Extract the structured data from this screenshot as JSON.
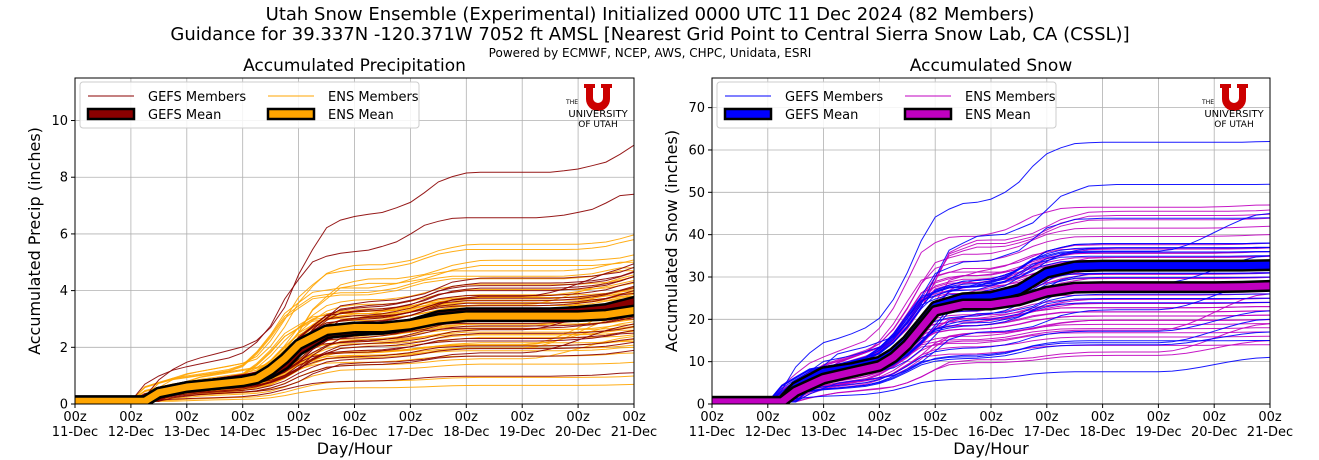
{
  "header": {
    "title_line1": "Utah Snow Ensemble (Experimental) Initialized 0000 UTC 11 Dec 2024 (82 Members)",
    "title_line2": "Guidance for 39.337N -120.371W 7052 ft AMSL [Nearest Grid Point to Central Sierra Snow Lab, CA (CSSL)]",
    "powered_by": "Powered by ECMWF, NCEP, AWS, CHPC, Unidata, ESRI"
  },
  "logo": {
    "the": "THE",
    "university": "UNIVERSITY",
    "of_utah": "OF UTAH",
    "mark": "U"
  },
  "chart_data": [
    {
      "type": "line",
      "title": "Accumulated Precipitation",
      "xlabel": "Day/Hour",
      "ylabel": "Accumulated Precip (inches)",
      "xlim": [
        0,
        240
      ],
      "ylim": [
        0,
        11.5
      ],
      "yticks": [
        0,
        2,
        4,
        6,
        8,
        10
      ],
      "xticks": [
        0,
        24,
        48,
        72,
        96,
        120,
        144,
        168,
        192,
        216,
        240
      ],
      "xticklabels": [
        [
          "00z",
          "11-Dec"
        ],
        [
          "00z",
          "12-Dec"
        ],
        [
          "00z",
          "13-Dec"
        ],
        [
          "00z",
          "14-Dec"
        ],
        [
          "00z",
          "15-Dec"
        ],
        [
          "00z",
          "16-Dec"
        ],
        [
          "00z",
          "17-Dec"
        ],
        [
          "00z",
          "18-Dec"
        ],
        [
          "00z",
          "19-Dec"
        ],
        [
          "00z",
          "20-Dec"
        ],
        [
          "00z",
          "21-Dec"
        ]
      ],
      "grid": true,
      "legend_position": "top-left",
      "legend": [
        {
          "label": "GEFS Members",
          "kind": "thin",
          "color": "#8b0000"
        },
        {
          "label": "ENS Members",
          "kind": "thin",
          "color": "#ffa500"
        },
        {
          "label": "GEFS Mean",
          "kind": "thick",
          "color": "#8b0000"
        },
        {
          "label": "ENS Mean",
          "kind": "thick",
          "color": "#ffa500"
        }
      ],
      "member_spread": [
        {
          "name": "GEFS Members",
          "color": "#8b0000",
          "count": 31,
          "final_values": [
            1.1,
            1.9,
            2.2,
            2.3,
            2.5,
            2.6,
            2.8,
            2.9,
            3.0,
            3.1,
            3.2,
            3.3,
            3.4,
            3.5,
            3.5,
            3.6,
            3.7,
            3.8,
            3.9,
            4.0,
            4.1,
            4.2,
            4.3,
            4.5,
            4.6,
            4.7,
            4.8,
            5.0,
            5.1,
            7.4,
            9.2
          ]
        },
        {
          "name": "ENS Members",
          "color": "#ffa500",
          "count": 51,
          "final_values": [
            0.7,
            1.0,
            1.5,
            1.8,
            2.0,
            2.1,
            2.2,
            2.3,
            2.4,
            2.5,
            2.6,
            2.6,
            2.7,
            2.8,
            2.8,
            2.9,
            3.0,
            3.0,
            3.1,
            3.1,
            3.2,
            3.2,
            3.3,
            3.3,
            3.4,
            3.4,
            3.5,
            3.5,
            3.6,
            3.6,
            3.7,
            3.7,
            3.8,
            3.8,
            3.9,
            3.9,
            4.0,
            4.0,
            4.1,
            4.2,
            4.3,
            4.4,
            4.5,
            4.6,
            4.7,
            4.8,
            5.0,
            5.2,
            5.4,
            5.8,
            6.0
          ]
        }
      ],
      "series": [
        {
          "name": "GEFS Mean",
          "color": "#8b0000",
          "x": [
            0,
            24,
            30,
            36,
            48,
            60,
            72,
            78,
            84,
            90,
            96,
            108,
            120,
            132,
            144,
            156,
            168,
            180,
            192,
            204,
            216,
            228,
            240
          ],
          "values": [
            0.1,
            0.1,
            0.1,
            0.4,
            0.6,
            0.7,
            0.8,
            0.9,
            1.1,
            1.4,
            1.9,
            2.5,
            2.6,
            2.65,
            2.8,
            3.1,
            3.2,
            3.2,
            3.2,
            3.2,
            3.25,
            3.35,
            3.6
          ]
        },
        {
          "name": "ENS Mean",
          "color": "#ffa500",
          "x": [
            0,
            24,
            30,
            36,
            48,
            60,
            72,
            78,
            84,
            90,
            96,
            108,
            120,
            132,
            144,
            156,
            168,
            180,
            192,
            204,
            216,
            228,
            240
          ],
          "values": [
            0.1,
            0.1,
            0.1,
            0.4,
            0.6,
            0.7,
            0.8,
            0.9,
            1.2,
            1.6,
            2.1,
            2.6,
            2.7,
            2.7,
            2.8,
            3.0,
            3.1,
            3.1,
            3.1,
            3.1,
            3.1,
            3.15,
            3.3
          ]
        }
      ]
    },
    {
      "type": "line",
      "title": "Accumulated Snow",
      "xlabel": "Day/Hour",
      "ylabel": "Accumulated Snow (inches)",
      "xlim": [
        0,
        240
      ],
      "ylim": [
        0,
        77
      ],
      "yticks": [
        0,
        10,
        20,
        30,
        40,
        50,
        60,
        70
      ],
      "xticks": [
        0,
        24,
        48,
        72,
        96,
        120,
        144,
        168,
        192,
        216,
        240
      ],
      "xticklabels": [
        [
          "00z",
          "11-Dec"
        ],
        [
          "00z",
          "12-Dec"
        ],
        [
          "00z",
          "13-Dec"
        ],
        [
          "00z",
          "14-Dec"
        ],
        [
          "00z",
          "15-Dec"
        ],
        [
          "00z",
          "16-Dec"
        ],
        [
          "00z",
          "17-Dec"
        ],
        [
          "00z",
          "18-Dec"
        ],
        [
          "00z",
          "19-Dec"
        ],
        [
          "00z",
          "20-Dec"
        ],
        [
          "00z",
          "21-Dec"
        ]
      ],
      "grid": true,
      "legend_position": "top-left",
      "legend": [
        {
          "label": "GEFS Members",
          "kind": "thin",
          "color": "#0000ff"
        },
        {
          "label": "ENS Members",
          "kind": "thin",
          "color": "#c000c0"
        },
        {
          "label": "GEFS Mean",
          "kind": "thick",
          "color": "#0000ff"
        },
        {
          "label": "ENS Mean",
          "kind": "thick",
          "color": "#c000c0"
        }
      ],
      "member_spread": [
        {
          "name": "GEFS Members",
          "color": "#0000ff",
          "count": 31,
          "final_values": [
            11,
            15,
            17,
            20,
            22,
            24,
            25,
            26,
            27,
            28,
            29,
            30,
            31,
            31,
            32,
            33,
            33,
            34,
            34,
            35,
            35,
            36,
            36,
            37,
            37,
            38,
            38,
            44,
            45,
            52,
            62
          ]
        },
        {
          "name": "ENS Members",
          "color": "#c000c0",
          "count": 51,
          "final_values": [
            14,
            15,
            16,
            17,
            18,
            19,
            19,
            20,
            20,
            21,
            21,
            22,
            22,
            23,
            23,
            24,
            24,
            25,
            25,
            26,
            26,
            27,
            27,
            28,
            28,
            28,
            29,
            29,
            30,
            30,
            31,
            31,
            32,
            32,
            33,
            33,
            34,
            34,
            35,
            35,
            36,
            36,
            37,
            37,
            38,
            40,
            42,
            44,
            45,
            46,
            47
          ]
        }
      ],
      "series": [
        {
          "name": "GEFS Mean",
          "color": "#0000ff",
          "x": [
            0,
            24,
            30,
            36,
            48,
            60,
            72,
            78,
            84,
            90,
            96,
            108,
            120,
            132,
            144,
            156,
            168,
            180,
            192,
            204,
            216,
            228,
            240
          ],
          "values": [
            0.5,
            0.5,
            0.5,
            4,
            7.5,
            8.5,
            10,
            12,
            15,
            19,
            23,
            25,
            25.3,
            27,
            31,
            32.5,
            32.7,
            32.7,
            32.7,
            32.7,
            32.7,
            32.7,
            32.8
          ]
        },
        {
          "name": "ENS Mean",
          "color": "#c000c0",
          "x": [
            0,
            24,
            30,
            36,
            48,
            60,
            72,
            78,
            84,
            90,
            96,
            108,
            120,
            132,
            144,
            156,
            168,
            180,
            192,
            204,
            216,
            228,
            240
          ],
          "values": [
            0.5,
            0.5,
            0.5,
            3,
            6,
            7.5,
            9,
            11,
            14,
            18,
            22,
            23.5,
            23.5,
            24.5,
            26.5,
            27.5,
            27.6,
            27.6,
            27.6,
            27.6,
            27.6,
            27.7,
            27.9
          ]
        }
      ]
    }
  ]
}
